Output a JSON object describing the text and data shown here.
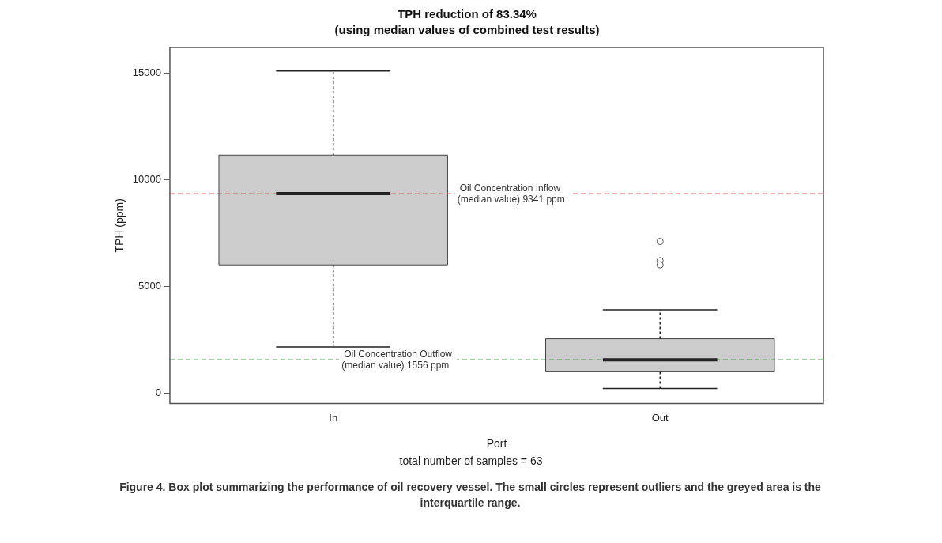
{
  "chart_data": {
    "type": "box",
    "title": "TPH reduction of 83.34%",
    "subtitle": "(using median values of combined test results)",
    "xlabel": "Port",
    "ylabel": "TPH (ppm)",
    "categories": [
      "In",
      "Out"
    ],
    "series": [
      {
        "color": "#cccccc",
        "boxes": [
          {
            "low": 2150,
            "q1": 6000,
            "median": 9341,
            "q3": 11150,
            "high": 15100
          },
          {
            "low": 210,
            "q1": 990,
            "median": 1556,
            "q3": 2540,
            "high": 3900,
            "outliers": [
              7100,
              6200,
              6000
            ]
          }
        ]
      }
    ],
    "ylim": [
      -500,
      16200
    ],
    "yticks": [
      0,
      5000,
      10000,
      15000
    ],
    "grid": false,
    "ref_lines": [
      {
        "axis": "y",
        "value": 9341,
        "label": "Oil Concentration Inflow\n(median value) 9341 ppm",
        "color": "#e06060",
        "line_style": "dashed"
      },
      {
        "axis": "y",
        "value": 1556,
        "label": "Oil Concentration Outflow\n(median value) 1556 ppm",
        "color": "#40a040",
        "line_style": "dashed"
      }
    ],
    "annotations": [
      "total number of samples = 63",
      "Figure 4.  Box plot summarizing the performance of oil recovery vessel. The small circles represent outliers and the greyed area is the interquartile range."
    ]
  }
}
